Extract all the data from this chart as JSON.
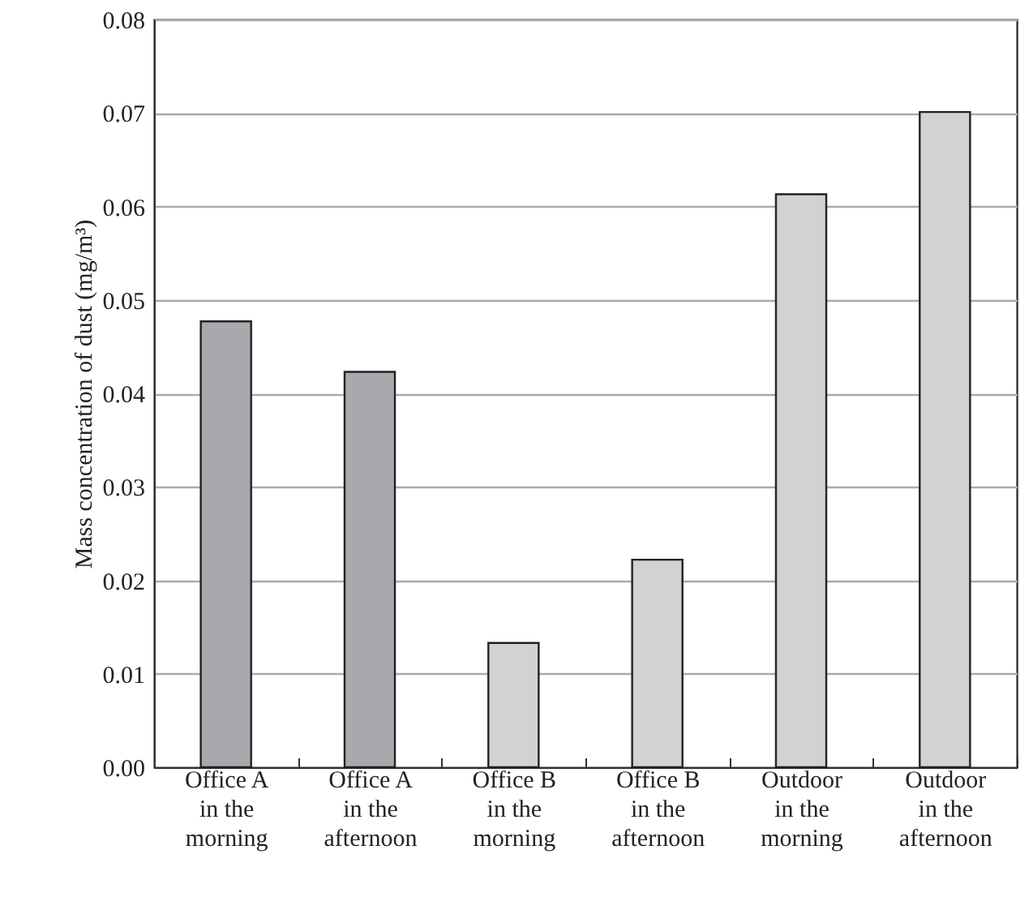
{
  "chart_data": {
    "type": "bar",
    "ylabel": "Mass concentration of dust (mg/m³)",
    "categories": [
      "Office A\nin the\nmorning",
      "Office A\nin the\nafternoon",
      "Office B\nin the\nmorning",
      "Office B\nin the\nafternoon",
      "Outdoor\nin the\nmorning",
      "Outdoor\nin the\nafternoon"
    ],
    "values": [
      0.0477,
      0.0423,
      0.0133,
      0.0222,
      0.0613,
      0.0701
    ],
    "colors": [
      "#a8a9ac",
      "#a8a9ac",
      "#d1d2d4",
      "#d1d2d4",
      "#d1d2d4",
      "#d1d2d4"
    ],
    "ylim": [
      0,
      0.08
    ],
    "yticks": [
      {
        "value": 0,
        "label": "0.00"
      },
      {
        "value": 0.01,
        "label": "0.01"
      },
      {
        "value": 0.02,
        "label": "0.02"
      },
      {
        "value": 0.03,
        "label": "0.03"
      },
      {
        "value": 0.04,
        "label": "0.04"
      },
      {
        "value": 0.05,
        "label": "0.05"
      },
      {
        "value": 0.06,
        "label": "0.06"
      },
      {
        "value": 0.07,
        "label": "0.07"
      },
      {
        "value": 0.08,
        "label": "0.08"
      }
    ],
    "grid": "y"
  }
}
